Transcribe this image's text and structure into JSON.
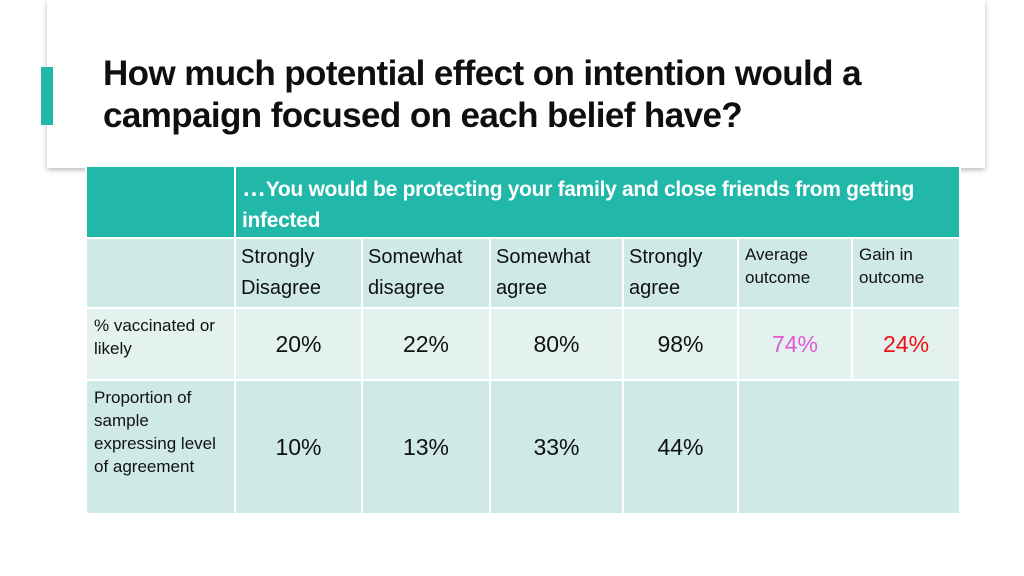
{
  "slide": {
    "title": "How much potential effect on intention would a campaign focused on each belief have?"
  },
  "table": {
    "belief_ellipsis": "…",
    "belief": "You would be protecting your family and close friends from getting infected",
    "columns": [
      {
        "line1": "Strongly",
        "line2": "Disagree"
      },
      {
        "line1": "Somewhat",
        "line2": "disagree"
      },
      {
        "line1": "Somewhat",
        "line2": "agree"
      },
      {
        "line1": "Strongly",
        "line2": "agree"
      },
      {
        "line1": "Average",
        "line2": "outcome"
      },
      {
        "line1": "Gain in",
        "line2": "outcome"
      }
    ],
    "rows": [
      {
        "label": "% vaccinated or likely",
        "values": [
          "20%",
          "22%",
          "80%",
          "98%",
          "74%",
          "24%"
        ]
      },
      {
        "label": "Proportion of sample expressing level of agreement",
        "values": [
          "10%",
          "13%",
          "33%",
          "44%"
        ]
      }
    ]
  },
  "colors": {
    "accent": "#22b8a9",
    "average_outcome": "#e05ad6",
    "gain_outcome": "#ee1111"
  }
}
